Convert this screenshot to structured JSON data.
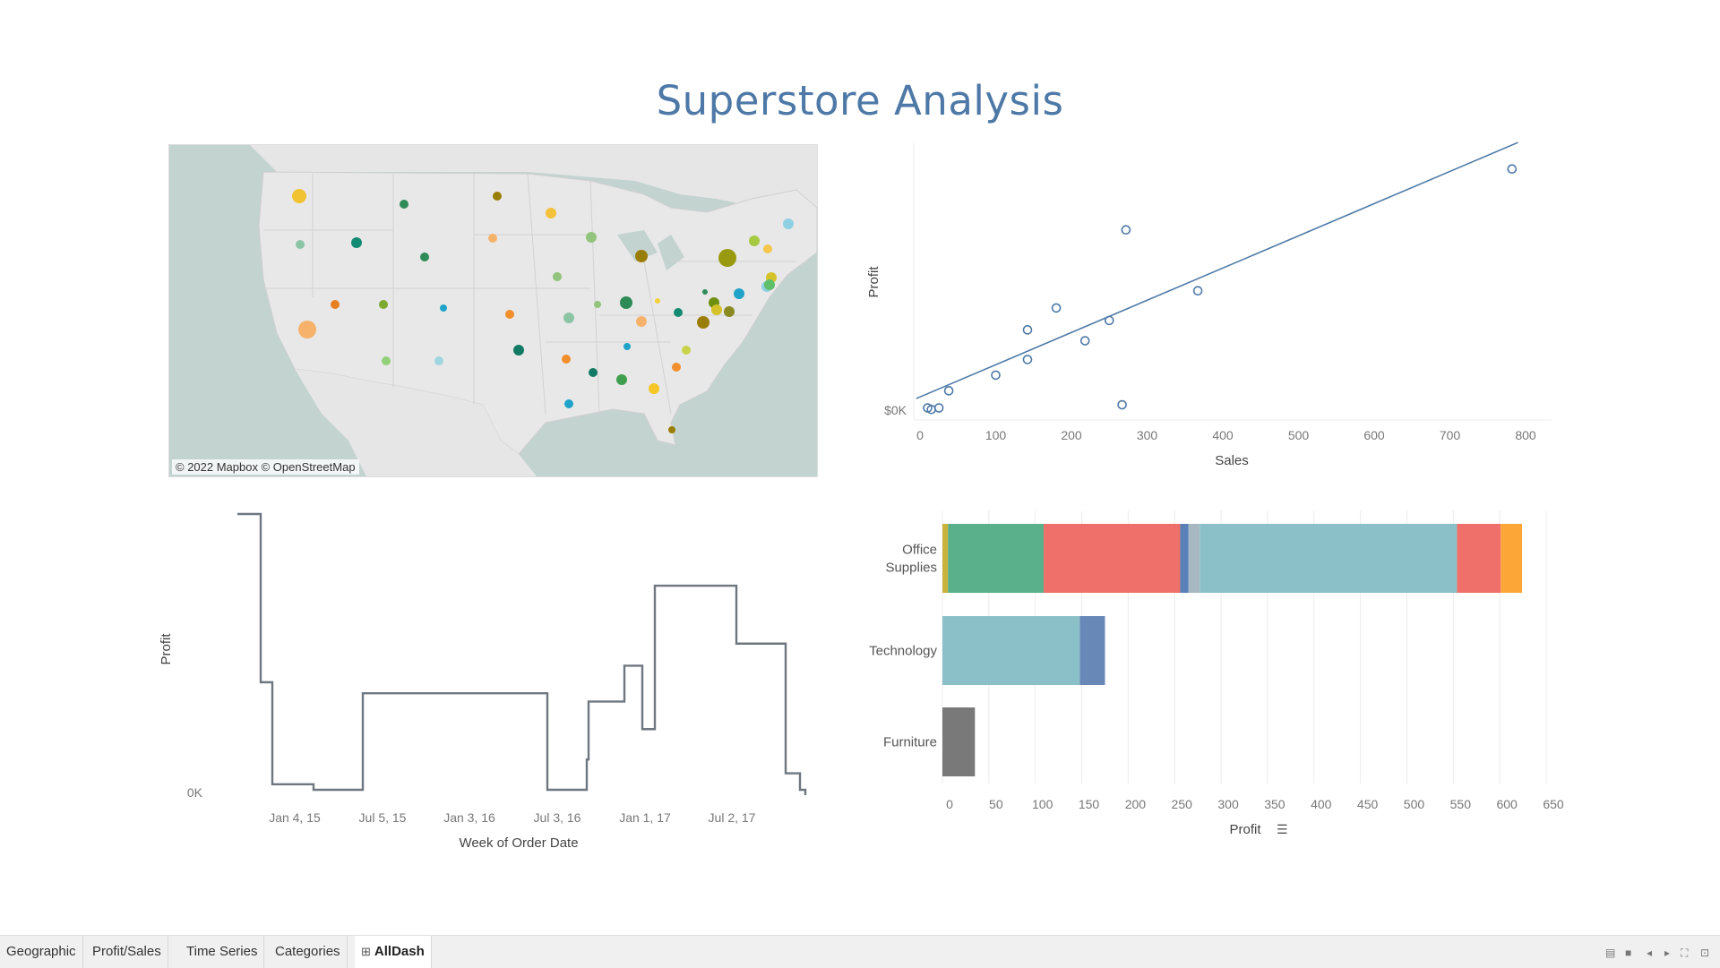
{
  "dashboard": {
    "title": "Superstore Analysis"
  },
  "map": {
    "attribution": "© 2022 Mapbox © OpenStreetMap",
    "marker_colors": [
      "#f1c232",
      "#2e8b57",
      "#b09000",
      "#f3c13a",
      "#f6b26b",
      "#93c47d",
      "#138a72",
      "#117a65",
      "#5aa65a",
      "#2f8f4f",
      "#7cc08a",
      "#f6c64b",
      "#20a3c8",
      "#f28e2b",
      "#e67e22",
      "#ff9900"
    ]
  },
  "scatter": {
    "xlabel": "Sales",
    "ylabel": "Profit",
    "y_tick_label": "$0K",
    "x_ticks": [
      "0",
      "100",
      "200",
      "300",
      "400",
      "500",
      "600",
      "700",
      "800"
    ]
  },
  "timeseries": {
    "xlabel": "Week of Order Date",
    "ylabel": "Profit",
    "y_tick_label": "0K",
    "x_ticks": [
      "Jan 4, 15",
      "Jul 5, 15",
      "Jan 3, 16",
      "Jul 3, 16",
      "Jan 1, 17",
      "Jul 2, 17"
    ]
  },
  "categories_chart": {
    "xlabel": "Profit",
    "x_ticks": [
      "0",
      "50",
      "100",
      "150",
      "200",
      "250",
      "300",
      "350",
      "400",
      "450",
      "500",
      "550",
      "600",
      "650"
    ]
  },
  "chart_data": [
    {
      "type": "scatter",
      "xlabel": "Sales",
      "ylabel": "Profit",
      "xlim": [
        0,
        800
      ],
      "points": [
        {
          "x": 10,
          "y": 0.02
        },
        {
          "x": 15,
          "y": 0.01
        },
        {
          "x": 25,
          "y": 0.02
        },
        {
          "x": 38,
          "y": 0.13
        },
        {
          "x": 100,
          "y": 0.23
        },
        {
          "x": 142,
          "y": 0.33
        },
        {
          "x": 142,
          "y": 0.52
        },
        {
          "x": 180,
          "y": 0.66
        },
        {
          "x": 218,
          "y": 0.45
        },
        {
          "x": 250,
          "y": 0.58
        },
        {
          "x": 267,
          "y": 0.04
        },
        {
          "x": 272,
          "y": 1.16
        },
        {
          "x": 367,
          "y": 0.77
        },
        {
          "x": 782,
          "y": 1.55
        }
      ],
      "trend_line": {
        "x": [
          -5,
          790
        ],
        "y": [
          0.08,
          1.72
        ]
      }
    },
    {
      "type": "line",
      "line_shape": "step",
      "xlabel": "Week of Order Date",
      "ylabel": "Profit",
      "x": [
        "Nov 15, 14",
        "Jan 4, 15",
        "Jan 18, 15",
        "Mar 1, 15",
        "Jul 5, 15",
        "Jul 17, 16",
        "Sep 25, 16",
        "Oct 2, 16",
        "Dec 18, 16",
        "Jan 15, 17",
        "Feb 6, 17",
        "Jul 2, 17",
        "Oct 22, 17",
        "Dec 10, 17"
      ],
      "y": [
        1.0,
        0.39,
        0.02,
        0.0,
        0.35,
        0.0,
        0.11,
        0.32,
        0.45,
        0.22,
        0.74,
        0.53,
        0.06,
        0.0
      ],
      "note_units": "relative"
    },
    {
      "type": "bar",
      "orientation": "horizontal",
      "stacked": true,
      "xlabel": "Profit",
      "xlim": [
        0,
        650
      ],
      "categories": [
        "Office Supplies",
        "Technology",
        "Furniture"
      ],
      "segments": [
        [
          {
            "value": 6,
            "color": "#c9b33c"
          },
          {
            "value": 103,
            "color": "#59b08a"
          },
          {
            "value": 147,
            "color": "#ef6f6a"
          },
          {
            "value": 9,
            "color": "#5a80b8"
          },
          {
            "value": 12,
            "color": "#a8b8c0"
          },
          {
            "value": 277,
            "color": "#8cc0c8"
          },
          {
            "value": 47,
            "color": "#ef6f6a"
          },
          {
            "value": 23,
            "color": "#fca637"
          }
        ],
        [
          {
            "value": 148,
            "color": "#8cc0c8"
          },
          {
            "value": 27,
            "color": "#6888b8"
          }
        ],
        [
          {
            "value": 35,
            "color": "#797979"
          }
        ]
      ]
    }
  ],
  "tabs": [
    {
      "label": "Geographic",
      "active": false
    },
    {
      "label": "Profit/Sales",
      "active": false
    },
    {
      "label": "Time Series",
      "active": false
    },
    {
      "label": "Categories",
      "active": false
    },
    {
      "label": "AllDash",
      "active": true,
      "icon": "⊞"
    }
  ],
  "controls": {
    "view_icon": "▤",
    "view_icon_2": "■",
    "prev_icon": "◂",
    "next_icon": "▸",
    "fullscreen_icon": "⛶",
    "present_icon": "⊡"
  }
}
